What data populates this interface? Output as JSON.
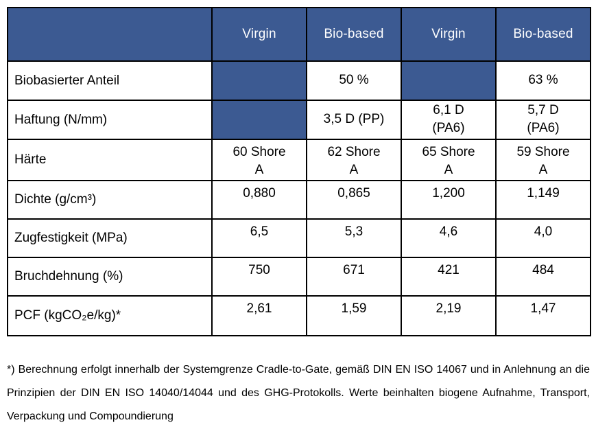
{
  "colors": {
    "header_blue": "#3C5A92",
    "border_black": "#000000",
    "header_text": "#ffffff"
  },
  "table": {
    "columns": [
      "",
      "Virgin",
      "Bio-based",
      "Virgin",
      "Bio-based"
    ],
    "rows": [
      {
        "label": "Biobasierter Anteil",
        "cells": [
          {
            "text": "",
            "filled": true
          },
          {
            "text": "50 %",
            "filled": false
          },
          {
            "text": "",
            "filled": true
          },
          {
            "text": "63 %",
            "filled": false
          }
        ]
      },
      {
        "label": "Haftung (N/mm)",
        "cells": [
          {
            "text": "",
            "filled": true
          },
          {
            "text": "3,5 D (PP)",
            "filled": false
          },
          {
            "text": "6,1 D\n(PA6)",
            "filled": false
          },
          {
            "text": "5,7 D\n(PA6)",
            "filled": false
          }
        ]
      },
      {
        "label": "Härte",
        "cells": [
          {
            "text": "60 Shore\nA",
            "filled": false
          },
          {
            "text": "62 Shore\nA",
            "filled": false
          },
          {
            "text": "65 Shore\nA",
            "filled": false
          },
          {
            "text": "59 Shore\nA",
            "filled": false
          }
        ]
      },
      {
        "label": "Dichte (g/cm³)",
        "cells": [
          {
            "text": "0,880",
            "filled": false
          },
          {
            "text": "0,865",
            "filled": false
          },
          {
            "text": "1,200",
            "filled": false
          },
          {
            "text": "1,149",
            "filled": false
          }
        ]
      },
      {
        "label": "Zugfestigkeit (MPa)",
        "cells": [
          {
            "text": "6,5",
            "filled": false
          },
          {
            "text": "5,3",
            "filled": false
          },
          {
            "text": "4,6",
            "filled": false
          },
          {
            "text": "4,0",
            "filled": false
          }
        ]
      },
      {
        "label": "Bruchdehnung (%)",
        "cells": [
          {
            "text": "750",
            "filled": false
          },
          {
            "text": "671",
            "filled": false
          },
          {
            "text": "421",
            "filled": false
          },
          {
            "text": "484",
            "filled": false
          }
        ]
      },
      {
        "label": "PCF (kgCO₂e/kg)*",
        "cells": [
          {
            "text": "2,61",
            "filled": false
          },
          {
            "text": "1,59",
            "filled": false
          },
          {
            "text": "2,19",
            "filled": false
          },
          {
            "text": "1,47",
            "filled": false
          }
        ]
      }
    ]
  },
  "footnote": "*) Berechnung erfolgt innerhalb der Systemgrenze Cradle-to-Gate, gemäß DIN EN ISO 14067 und in Anlehnung an die Prinzipien der DIN EN ISO 14040/14044 und des GHG-Protokolls. Werte beinhalten biogene Aufnahme, Transport, Verpackung und Compoundierung"
}
